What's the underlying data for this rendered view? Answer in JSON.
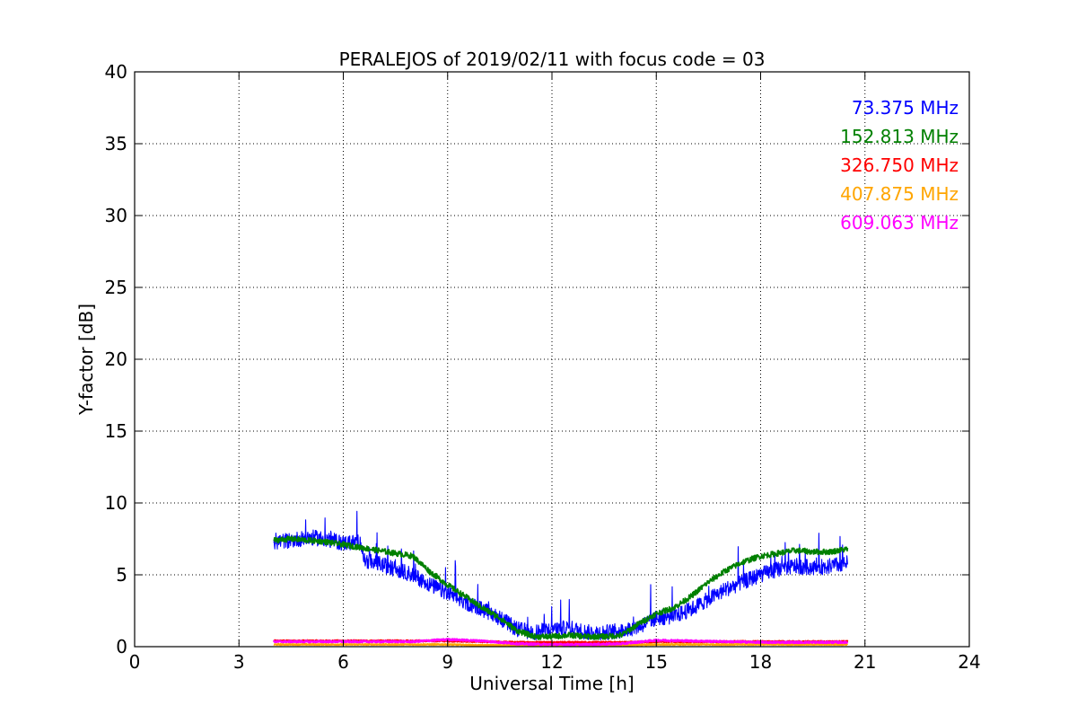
{
  "chart_data": {
    "type": "line",
    "title": "PERALEJOS of 2019/02/11 with focus code = 03",
    "xlabel": "Universal Time [h]",
    "ylabel": "Y-factor [dB]",
    "xlim": [
      0,
      24
    ],
    "ylim": [
      0,
      40
    ],
    "xticks": [
      0,
      3,
      6,
      9,
      12,
      15,
      18,
      21,
      24
    ],
    "yticks": [
      0,
      5,
      10,
      15,
      20,
      25,
      30,
      35,
      40
    ],
    "xtick_labels": [
      "0",
      "3",
      "6",
      "9",
      "12",
      "15",
      "18",
      "21",
      "24"
    ],
    "ytick_labels": [
      "0",
      "5",
      "10",
      "15",
      "20",
      "25",
      "30",
      "35",
      "40"
    ],
    "grid": true,
    "legend_position": "top-right",
    "series": [
      {
        "name": "73.375 MHz",
        "color": "#0000ff",
        "noise": 0.55,
        "x": [
          4.0,
          4.5,
          5.0,
          5.5,
          6.0,
          6.5,
          6.6,
          7.0,
          7.5,
          8.0,
          8.5,
          9.0,
          9.5,
          10.0,
          10.5,
          11.0,
          11.5,
          12.0,
          12.5,
          13.0,
          13.5,
          14.0,
          14.5,
          15.0,
          15.5,
          16.0,
          16.5,
          17.0,
          17.5,
          18.0,
          18.5,
          19.0,
          19.5,
          20.0,
          20.5
        ],
        "y": [
          7.3,
          7.4,
          7.6,
          7.5,
          7.2,
          7.3,
          6.0,
          5.8,
          5.4,
          5.0,
          4.3,
          3.7,
          3.1,
          2.6,
          2.0,
          1.2,
          1.0,
          1.2,
          1.3,
          1.0,
          1.0,
          1.1,
          1.4,
          2.0,
          2.1,
          2.6,
          3.3,
          4.0,
          4.5,
          5.0,
          5.4,
          5.6,
          5.5,
          5.6,
          5.8
        ]
      },
      {
        "name": "152.813 MHz",
        "color": "#008000",
        "noise": 0.2,
        "x": [
          4.0,
          4.5,
          5.0,
          5.5,
          6.0,
          6.5,
          7.0,
          7.5,
          8.0,
          8.5,
          9.0,
          9.5,
          10.0,
          10.5,
          11.0,
          11.5,
          12.0,
          12.5,
          13.0,
          13.5,
          14.0,
          14.5,
          15.0,
          15.5,
          16.0,
          16.5,
          17.0,
          17.5,
          18.0,
          18.5,
          19.0,
          19.5,
          20.0,
          20.5
        ],
        "y": [
          7.4,
          7.5,
          7.4,
          7.3,
          7.1,
          6.9,
          6.7,
          6.5,
          6.3,
          5.2,
          4.3,
          3.5,
          2.7,
          2.0,
          1.1,
          0.7,
          0.7,
          0.8,
          0.7,
          0.7,
          0.8,
          1.6,
          2.3,
          2.7,
          3.5,
          4.5,
          5.3,
          5.9,
          6.3,
          6.5,
          6.7,
          6.6,
          6.6,
          6.8
        ]
      },
      {
        "name": "326.750 MHz",
        "color": "#ff0000",
        "noise": 0.05,
        "x": [
          4.0,
          8.0,
          9.0,
          10.0,
          11.0,
          12.0,
          13.0,
          14.0,
          15.0,
          16.0,
          17.0,
          18.0,
          19.0,
          20.5
        ],
        "y": [
          0.4,
          0.4,
          0.4,
          0.35,
          0.3,
          0.3,
          0.3,
          0.3,
          0.35,
          0.35,
          0.35,
          0.35,
          0.35,
          0.35
        ]
      },
      {
        "name": "407.875 MHz",
        "color": "#ffa500",
        "noise": 0.03,
        "x": [
          4.0,
          8.0,
          9.0,
          10.0,
          11.0,
          12.0,
          13.0,
          14.0,
          15.0,
          16.0,
          17.0,
          18.0,
          19.0,
          20.5
        ],
        "y": [
          0.15,
          0.15,
          0.15,
          0.1,
          0.1,
          0.1,
          0.1,
          0.1,
          0.15,
          0.15,
          0.15,
          0.15,
          0.15,
          0.15
        ]
      },
      {
        "name": "609.063 MHz",
        "color": "#ff00ff",
        "noise": 0.06,
        "x": [
          4.0,
          6.0,
          8.0,
          9.0,
          10.0,
          11.0,
          12.0,
          13.0,
          14.0,
          15.0,
          16.0,
          17.0,
          18.0,
          19.0,
          20.5
        ],
        "y": [
          0.35,
          0.35,
          0.35,
          0.5,
          0.4,
          0.2,
          0.15,
          0.15,
          0.2,
          0.45,
          0.4,
          0.35,
          0.3,
          0.3,
          0.3
        ]
      }
    ]
  }
}
